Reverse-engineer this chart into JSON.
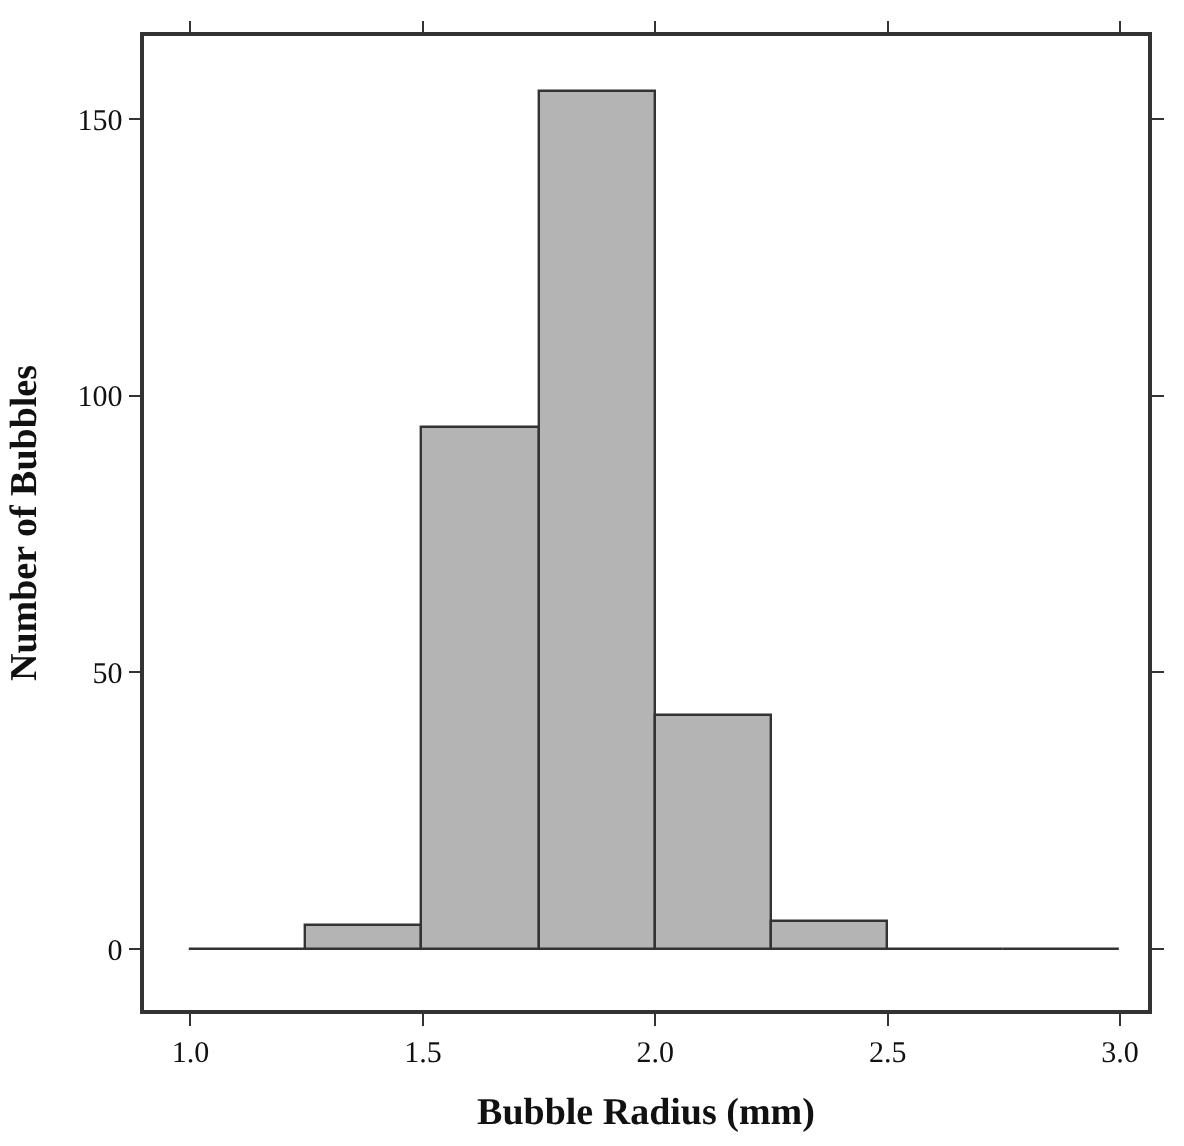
{
  "chart_data": {
    "type": "histogram",
    "xlabel": "Bubble Radius (mm)",
    "ylabel": "Number of Bubbles",
    "bins": [
      1.0,
      1.25,
      1.5,
      1.75,
      2.0,
      2.25,
      2.5,
      2.75,
      3.0
    ],
    "values": [
      0,
      4,
      94,
      155,
      42,
      5,
      0,
      0
    ],
    "colors": [
      "#333333",
      "#b4b4b4",
      "#b4b4b4",
      "#b4b4b4",
      "#b4b4b4",
      "#b4b4b4",
      "#333333",
      "#333333"
    ],
    "xlim": [
      0.9,
      3.06
    ],
    "xticks": [
      {
        "value": 1.0,
        "label": "1.0"
      },
      1.5,
      {
        "value": 2.0,
        "label": "2.0"
      },
      2.5,
      {
        "value": 3.0,
        "label": "3.0"
      }
    ],
    "ylim": [
      -11,
      165
    ],
    "yticks": [
      0,
      50,
      100,
      150
    ]
  }
}
